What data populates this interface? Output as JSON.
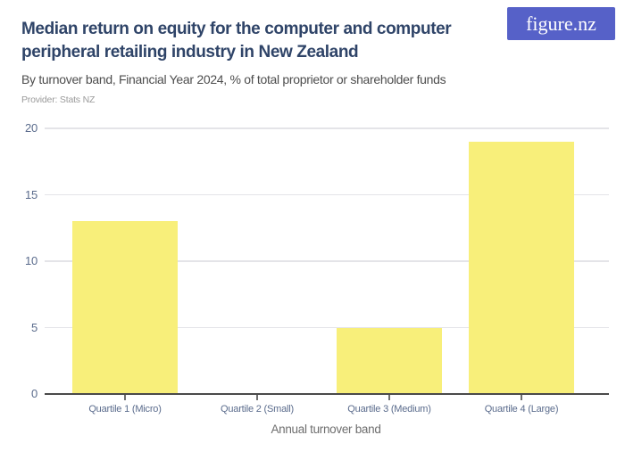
{
  "header": {
    "title_line1": "Median return on equity for the computer and computer",
    "title_line2": "peripheral retailing industry in New Zealand",
    "subtitle": "By turnover band, Financial Year 2024, % of total proprietor or shareholder funds",
    "provider": "Provider: Stats NZ",
    "logo_text": "figure.nz"
  },
  "colors": {
    "brand_purple": "#5661c8",
    "bar_yellow": "#f8ef7a",
    "title_navy": "#2f4468",
    "axis_label_slate": "#5a6b8c",
    "gridline_gray": "#e4e4e8",
    "axis_line_gray": "#4a4a4a",
    "subtitle_gray": "#4d4d4d",
    "provider_gray": "#9b9b9b"
  },
  "chart_data": {
    "type": "bar",
    "title": "Median return on equity for the computer and computer peripheral retailing industry in New Zealand",
    "subtitle": "By turnover band, Financial Year 2024, % of total proprietor or shareholder funds",
    "categories": [
      "Quartile 1 (Micro)",
      "Quartile 2 (Small)",
      "Quartile 3 (Medium)",
      "Quartile 4 (Large)"
    ],
    "values": [
      13,
      0,
      5,
      19
    ],
    "xlabel": "Annual turnover band",
    "ylabel": "",
    "ylim": [
      0,
      20
    ],
    "yticks": [
      0,
      5,
      10,
      15,
      20
    ],
    "bar_color": "#f8ef7a",
    "grid": true,
    "legend": false
  }
}
